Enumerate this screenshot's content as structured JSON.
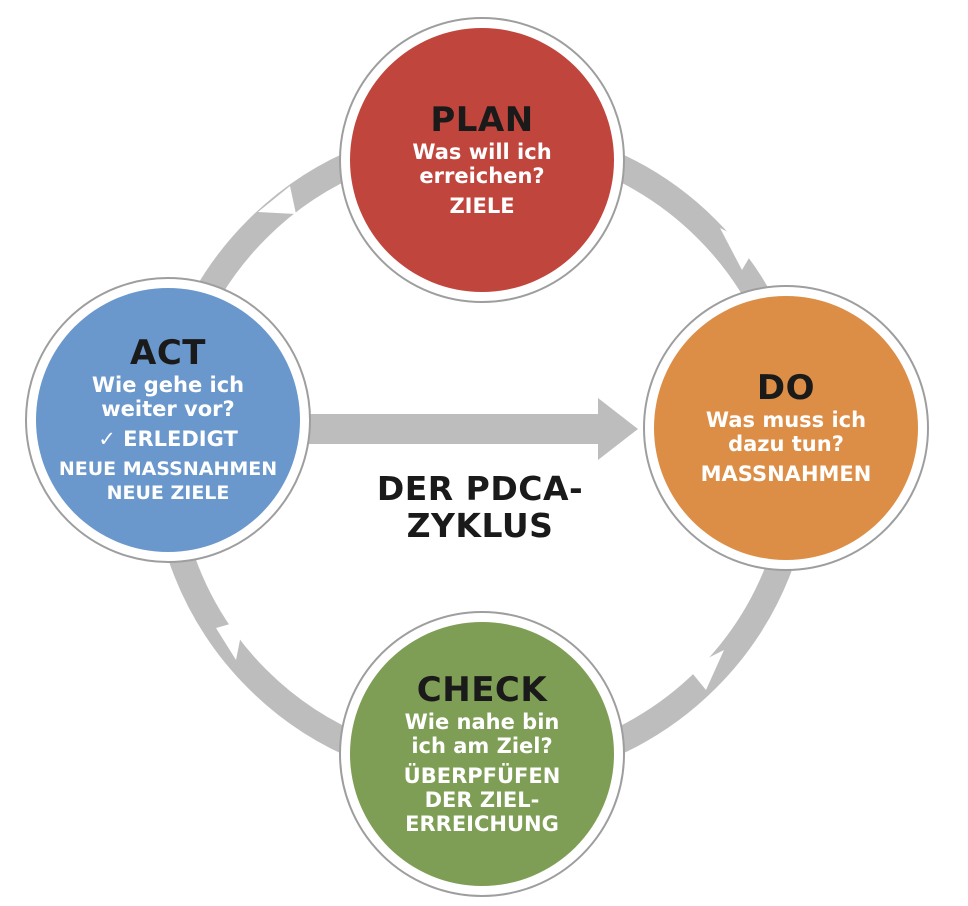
{
  "diagram": {
    "center_title": "DER PDCA-\nZYKLUS",
    "colors": {
      "ring": "#bdbdbd",
      "circle_border": "#9e9e9e",
      "plan": "#c0463d",
      "do": "#dc8e46",
      "check": "#7f9e55",
      "act": "#6a97cc",
      "title_text": "#1a1a1a",
      "body_text": "#ffffff"
    },
    "phases": {
      "plan": {
        "title": "PLAN",
        "question": "Was will ich\nerreichen?",
        "answer": "ZIELE"
      },
      "do": {
        "title": "DO",
        "question": "Was muss ich\ndazu tun?",
        "answer": "MASSNAHMEN"
      },
      "check": {
        "title": "CHECK",
        "question": "Wie nahe bin\nich am Ziel?",
        "answer": "ÜBERPFÜFEN\nDER ZIEL-\nERREICHUNG"
      },
      "act": {
        "title": "ACT",
        "question": "Wie gehe ich\nweiter vor?",
        "done_mark": "✓",
        "done": "ERLEDIGT",
        "new_measures": "NEUE MASSNAHMEN",
        "new_goals": "NEUE ZIELE"
      }
    }
  }
}
